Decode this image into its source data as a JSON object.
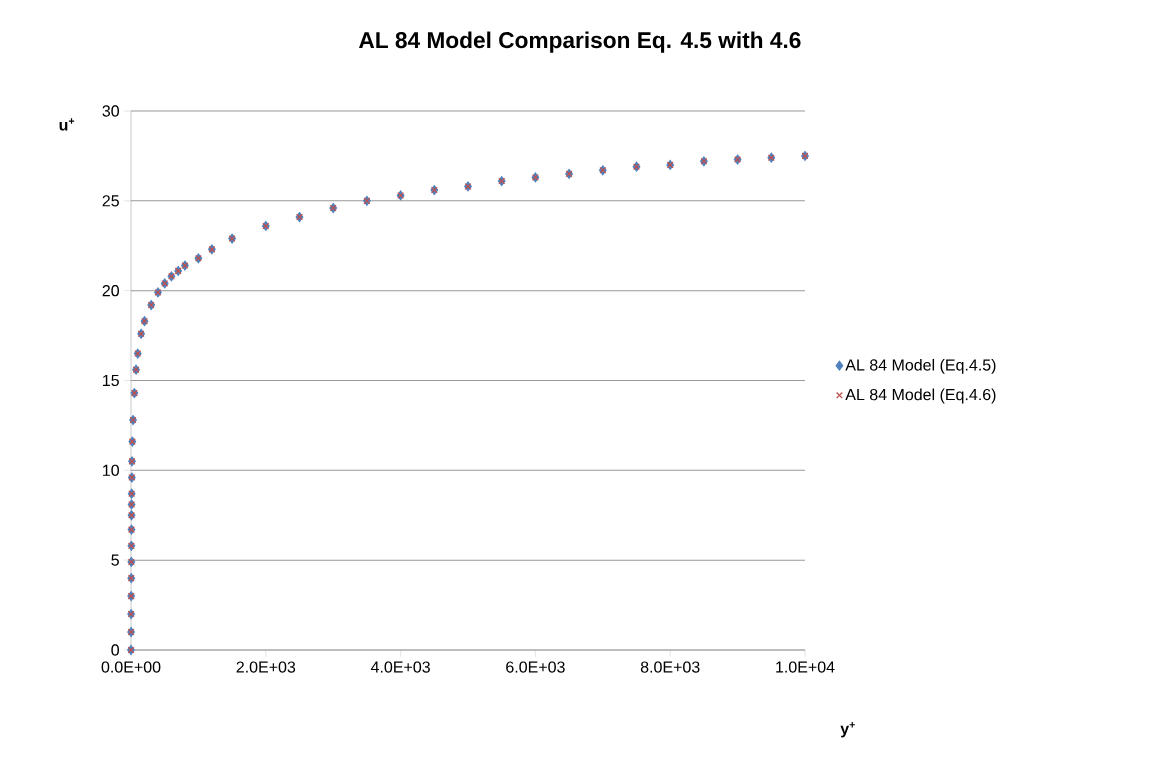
{
  "chart_data": {
    "type": "scatter",
    "title": "AL 84 Model Comparison Eq. 4.5 with 4.6",
    "xlabel": "y$^{+}$",
    "ylabel": "u$^{+}$",
    "x": [
      0,
      1,
      2,
      3,
      4,
      5,
      6,
      7,
      8,
      9,
      10,
      12,
      15,
      20,
      30,
      50,
      75,
      100,
      150,
      200,
      300,
      400,
      500,
      600,
      700,
      800,
      1000,
      1200,
      1500,
      2000,
      2500,
      3000,
      3500,
      4000,
      4500,
      5000,
      5500,
      6000,
      6500,
      7000,
      7500,
      8000,
      8500,
      9000,
      9500,
      10000
    ],
    "series": [
      {
        "name": "AL 84 Model (Eq.4.5)",
        "color": "#4f81bd",
        "marker": "diamond",
        "values": [
          0,
          1,
          2,
          3,
          4,
          4.9,
          5.8,
          6.7,
          7.5,
          8.1,
          8.7,
          9.6,
          10.5,
          11.6,
          12.8,
          14.3,
          15.6,
          16.5,
          17.6,
          18.3,
          19.2,
          19.9,
          20.4,
          20.8,
          21.1,
          21.4,
          21.8,
          22.3,
          22.9,
          23.6,
          24.1,
          24.6,
          25.0,
          25.3,
          25.6,
          25.8,
          26.1,
          26.3,
          26.5,
          26.7,
          26.9,
          27.0,
          27.2,
          27.3,
          27.4,
          27.5
        ]
      },
      {
        "name": "AL 84 Model (Eq.4.6)",
        "color": "#c0504d",
        "marker": "cross",
        "values": [
          0,
          1,
          2,
          3,
          4,
          4.9,
          5.8,
          6.7,
          7.5,
          8.1,
          8.7,
          9.6,
          10.5,
          11.6,
          12.8,
          14.3,
          15.6,
          16.5,
          17.6,
          18.3,
          19.2,
          19.9,
          20.4,
          20.8,
          21.1,
          21.4,
          21.8,
          22.3,
          22.9,
          23.6,
          24.1,
          24.6,
          25.0,
          25.3,
          25.6,
          25.8,
          26.1,
          26.3,
          26.5,
          26.7,
          26.9,
          27.0,
          27.2,
          27.3,
          27.4,
          27.5
        ]
      }
    ],
    "xlim": [
      0,
      10000
    ],
    "ylim": [
      0,
      30
    ],
    "xticks": [
      {
        "value": 0,
        "label": "0.0E+00"
      },
      {
        "value": 2000,
        "label": "2.0E+03"
      },
      {
        "value": 4000,
        "label": "4.0E+03"
      },
      {
        "value": 6000,
        "label": "6.0E+03"
      },
      {
        "value": 8000,
        "label": "8.0E+03"
      },
      {
        "value": 10000,
        "label": "1.0E+04"
      }
    ],
    "yticks": [
      0,
      5,
      10,
      15,
      20,
      25,
      30
    ],
    "grid": "y",
    "legend": "right"
  }
}
